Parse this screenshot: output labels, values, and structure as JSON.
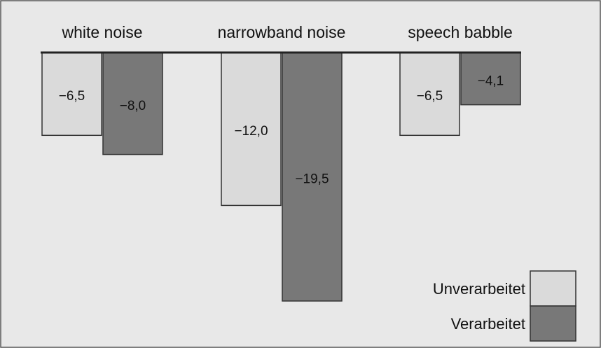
{
  "chart_data": {
    "type": "bar",
    "categories": [
      "white noise",
      "narrowband noise",
      "speech babble"
    ],
    "series": [
      {
        "name": "Unverarbeitet",
        "color": "#dadada",
        "label_color": "#111111",
        "values": [
          -6.5,
          -12.0,
          -6.5
        ],
        "value_labels": [
          "−6,5",
          "−12,0",
          "−6,5"
        ]
      },
      {
        "name": "Verarbeitet",
        "color": "#787878",
        "label_color": "#ffffff",
        "values": [
          -8.0,
          -19.5,
          -4.1
        ],
        "value_labels": [
          "−8,0",
          "−19,5",
          "−4,1"
        ]
      }
    ],
    "ylim": [
      -20,
      0
    ],
    "legend": "bottom-right"
  }
}
